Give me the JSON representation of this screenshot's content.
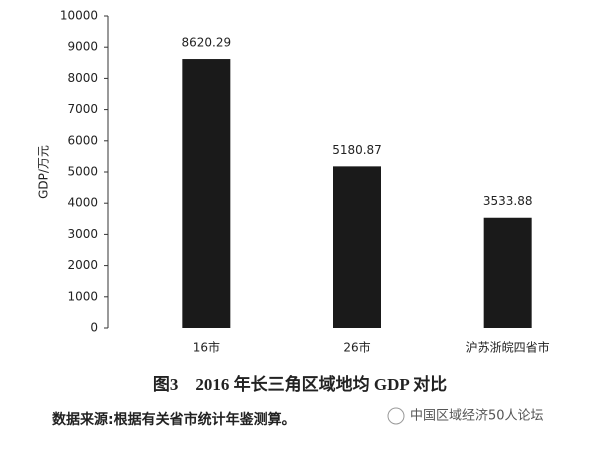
{
  "chart_data": {
    "type": "bar",
    "title": "图3　2016 年长三角区域地均 GDP 对比",
    "note": "数据来源:根据有关省市统计年鉴测算。",
    "watermark": "中国区域经济50人论坛",
    "y_label": "GDP/万元",
    "categories": [
      "16市",
      "26市",
      "沪苏浙皖四省市"
    ],
    "values": [
      8620.29,
      5180.87,
      3533.88
    ],
    "color": "#1a1a1a",
    "ylim": [
      0,
      10000
    ],
    "yticks": [
      0,
      1000,
      2000,
      3000,
      4000,
      5000,
      6000,
      7000,
      8000,
      9000,
      10000
    ],
    "grid": false
  }
}
